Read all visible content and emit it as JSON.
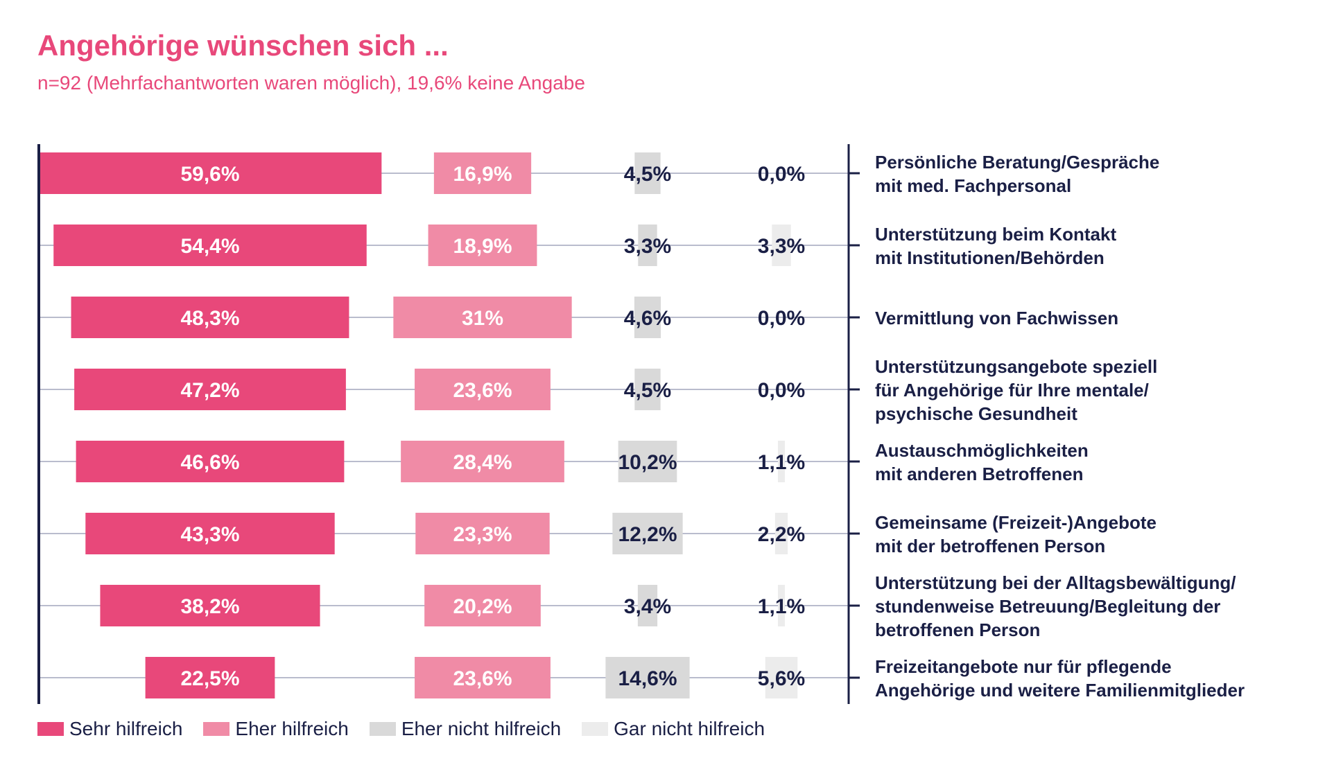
{
  "chart_data": {
    "type": "bar",
    "title": "Angehörige wünschen sich ...",
    "subtitle": "n=92 (Mehrfachantworten waren möglich), 19,6% keine Angabe",
    "categories": [
      "Persönliche Beratung/Gespräche\nmit med. Fachpersonal",
      "Unterstützung beim Kontakt\nmit Institutionen/Behörden",
      "Vermittlung von Fachwissen",
      "Unterstützungsangebote speziell\nfür Angehörige für Ihre mentale/\npsychische Gesundheit",
      "Austauschmöglichkeiten\nmit anderen Betroffenen",
      "Gemeinsame (Freizeit-)Angebote\nmit der betroffenen Person",
      "Unterstützung bei der Alltagsbewältigung/\nstundenweise Betreuung/Begleitung der\nbetroffenen Person",
      "Freizeitangebote nur für pflegende\nAngehörige und weitere Familienmitglieder"
    ],
    "series": [
      {
        "name": "Sehr hilfreich",
        "color": "#e8487a",
        "values": [
          59.6,
          54.4,
          48.3,
          47.2,
          46.6,
          43.3,
          38.2,
          22.5
        ],
        "labels": [
          "59,6%",
          "54,4%",
          "48,3%",
          "47,2%",
          "46,6%",
          "43,3%",
          "38,2%",
          "22,5%"
        ]
      },
      {
        "name": "Eher hilfreich",
        "color": "#f08ba6",
        "values": [
          16.9,
          18.9,
          31,
          23.6,
          28.4,
          23.3,
          20.2,
          23.6
        ],
        "labels": [
          "16,9%",
          "18,9%",
          "31%",
          "23,6%",
          "28,4%",
          "23,3%",
          "20,2%",
          "23,6%"
        ]
      },
      {
        "name": "Eher nicht hilfreich",
        "color": "#d9d9d9",
        "values": [
          4.5,
          3.3,
          4.6,
          4.5,
          10.2,
          12.2,
          3.4,
          14.6
        ],
        "labels": [
          "4,5%",
          "3,3%",
          "4,6%",
          "4,5%",
          "10,2%",
          "12,2%",
          "3,4%",
          "14,6%"
        ]
      },
      {
        "name": "Gar nicht hilfreich",
        "color": "#ececec",
        "values": [
          0.0,
          3.3,
          0.0,
          0.0,
          1.1,
          2.2,
          1.1,
          5.6
        ],
        "labels": [
          "0,0%",
          "3,3%",
          "0,0%",
          "0,0%",
          "1,1%",
          "2,2%",
          "1,1%",
          "5,6%"
        ]
      }
    ],
    "legend_position": "bottom-left",
    "colors": {
      "title": "#e8487a",
      "axis": "#1a1f45",
      "dark_label": "#1a1f45",
      "light_label": "#ffffff",
      "guide": "#b9bccd"
    }
  }
}
